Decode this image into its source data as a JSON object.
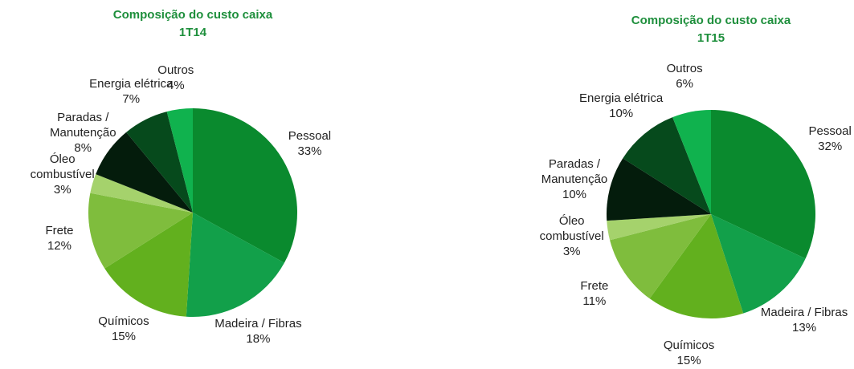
{
  "chart_data": [
    {
      "type": "pie",
      "title": "Composição do custo caixa",
      "subtitle": "1T14",
      "categories": [
        "Pessoal",
        "Madeira / Fibras",
        "Químicos",
        "Frete",
        "Óleo combustível",
        "Paradas / Manutenção",
        "Energia elétrica",
        "Outros"
      ],
      "values": [
        33,
        18,
        15,
        12,
        3,
        8,
        7,
        4
      ],
      "value_labels": [
        "33%",
        "18%",
        "15%",
        "12%",
        "3%",
        "8%",
        "7%",
        "4%"
      ],
      "colors": [
        "#0a8a2e",
        "#12a04a",
        "#62b01e",
        "#7fbd3d",
        "#a5d26c",
        "#041c0c",
        "#064a1c",
        "#10b24e"
      ]
    },
    {
      "type": "pie",
      "title": "Composição do custo caixa",
      "subtitle": "1T15",
      "categories": [
        "Pessoal",
        "Madeira / Fibras",
        "Químicos",
        "Frete",
        "Óleo combustível",
        "Paradas / Manutenção",
        "Energia elétrica",
        "Outros"
      ],
      "values": [
        32,
        13,
        15,
        11,
        3,
        10,
        10,
        6
      ],
      "value_labels": [
        "32%",
        "13%",
        "15%",
        "11%",
        "3%",
        "10%",
        "10%",
        "6%"
      ],
      "colors": [
        "#0a8a2e",
        "#12a04a",
        "#62b01e",
        "#7fbd3d",
        "#a5d26c",
        "#041c0c",
        "#064a1c",
        "#10b24e"
      ]
    }
  ]
}
